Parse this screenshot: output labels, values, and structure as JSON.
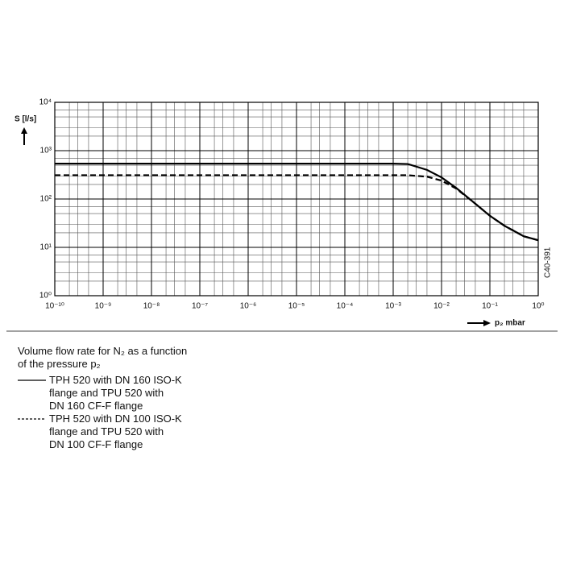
{
  "chart_data": {
    "type": "line",
    "x_label": "p₂  mbar",
    "y_label": "S [l/s]",
    "annotation": "C40-391",
    "caption": "Volume flow rate for N₂ as a function\nof the pressure p₂",
    "x": [
      1e-10,
      0.001,
      0.002,
      0.005,
      0.01,
      0.02,
      0.05,
      0.1,
      0.2,
      0.5,
      1
    ],
    "series": [
      {
        "name": "TPH 520 with DN 160 ISO-K\nflange and TPU 520 with\nDN 160 CF-F flange",
        "color": "#000000",
        "line_style": "solid",
        "values": [
          540,
          540,
          530,
          400,
          280,
          170,
          80,
          45,
          28,
          17,
          14
        ]
      },
      {
        "name": "TPH 520 with DN 100 ISO-K\nflange and TPU 520 with\nDN 100 CF-F flange",
        "color": "#000000",
        "line_style": "dashed",
        "values": [
          310,
          310,
          310,
          290,
          240,
          165,
          80,
          45,
          28,
          17,
          14
        ]
      }
    ],
    "xlim": [
      1e-10,
      1
    ],
    "ylim": [
      1,
      10000
    ],
    "x_log": true,
    "y_log": true,
    "grid": true,
    "minor_grid": true,
    "xticks": [
      {
        "value": 1e-10,
        "label": "10⁻¹⁰"
      },
      {
        "value": 1e-09,
        "label": "10⁻⁹"
      },
      {
        "value": 1e-08,
        "label": "10⁻⁸"
      },
      {
        "value": 1e-07,
        "label": "10⁻⁷"
      },
      {
        "value": 1e-06,
        "label": "10⁻⁶"
      },
      {
        "value": 1e-05,
        "label": "10⁻⁵"
      },
      {
        "value": 0.0001,
        "label": "10⁻⁴"
      },
      {
        "value": 0.001,
        "label": "10⁻³"
      },
      {
        "value": 0.01,
        "label": "10⁻²"
      },
      {
        "value": 0.1,
        "label": "10⁻¹"
      },
      {
        "value": 1,
        "label": "10⁰"
      }
    ],
    "yticks": [
      {
        "value": 1,
        "label": "10⁰"
      },
      {
        "value": 10,
        "label": "10¹"
      },
      {
        "value": 100,
        "label": "10²"
      },
      {
        "value": 1000,
        "label": "10³"
      },
      {
        "value": 10000,
        "label": "10⁴"
      }
    ]
  }
}
